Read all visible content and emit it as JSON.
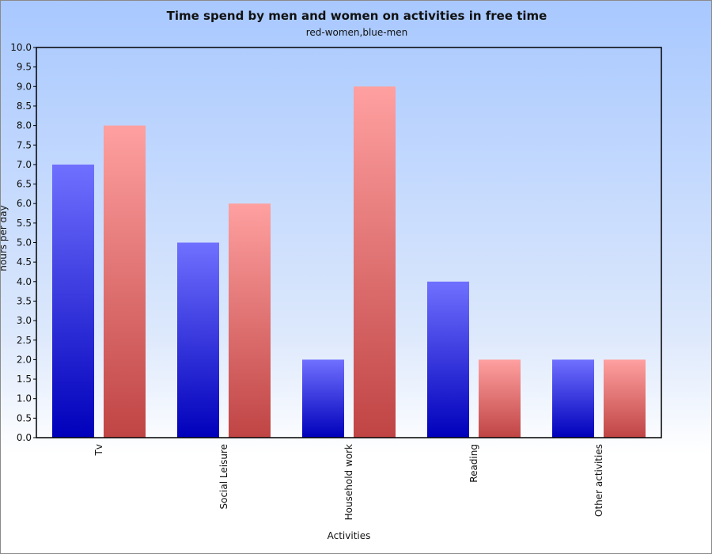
{
  "chart_data": {
    "type": "bar",
    "title": "Time spend by men and women on activities in free time",
    "subtitle": "red-women,blue-men",
    "xlabel": "Activities",
    "ylabel": "hours per day",
    "categories": [
      "Tv",
      "Social Leisure",
      "Household work",
      "Reading",
      "Other activities"
    ],
    "series": [
      {
        "values": [
          7,
          5,
          2,
          4,
          2
        ],
        "color_top": "#7070ff",
        "color_bottom": "#0000bb"
      },
      {
        "values": [
          8,
          6,
          9,
          2,
          2
        ],
        "color_top": "#ffa0a0",
        "color_bottom": "#c04444"
      }
    ],
    "ylim": [
      0,
      10
    ],
    "ytick_step": 0.5,
    "grid": false,
    "legend": "none"
  }
}
